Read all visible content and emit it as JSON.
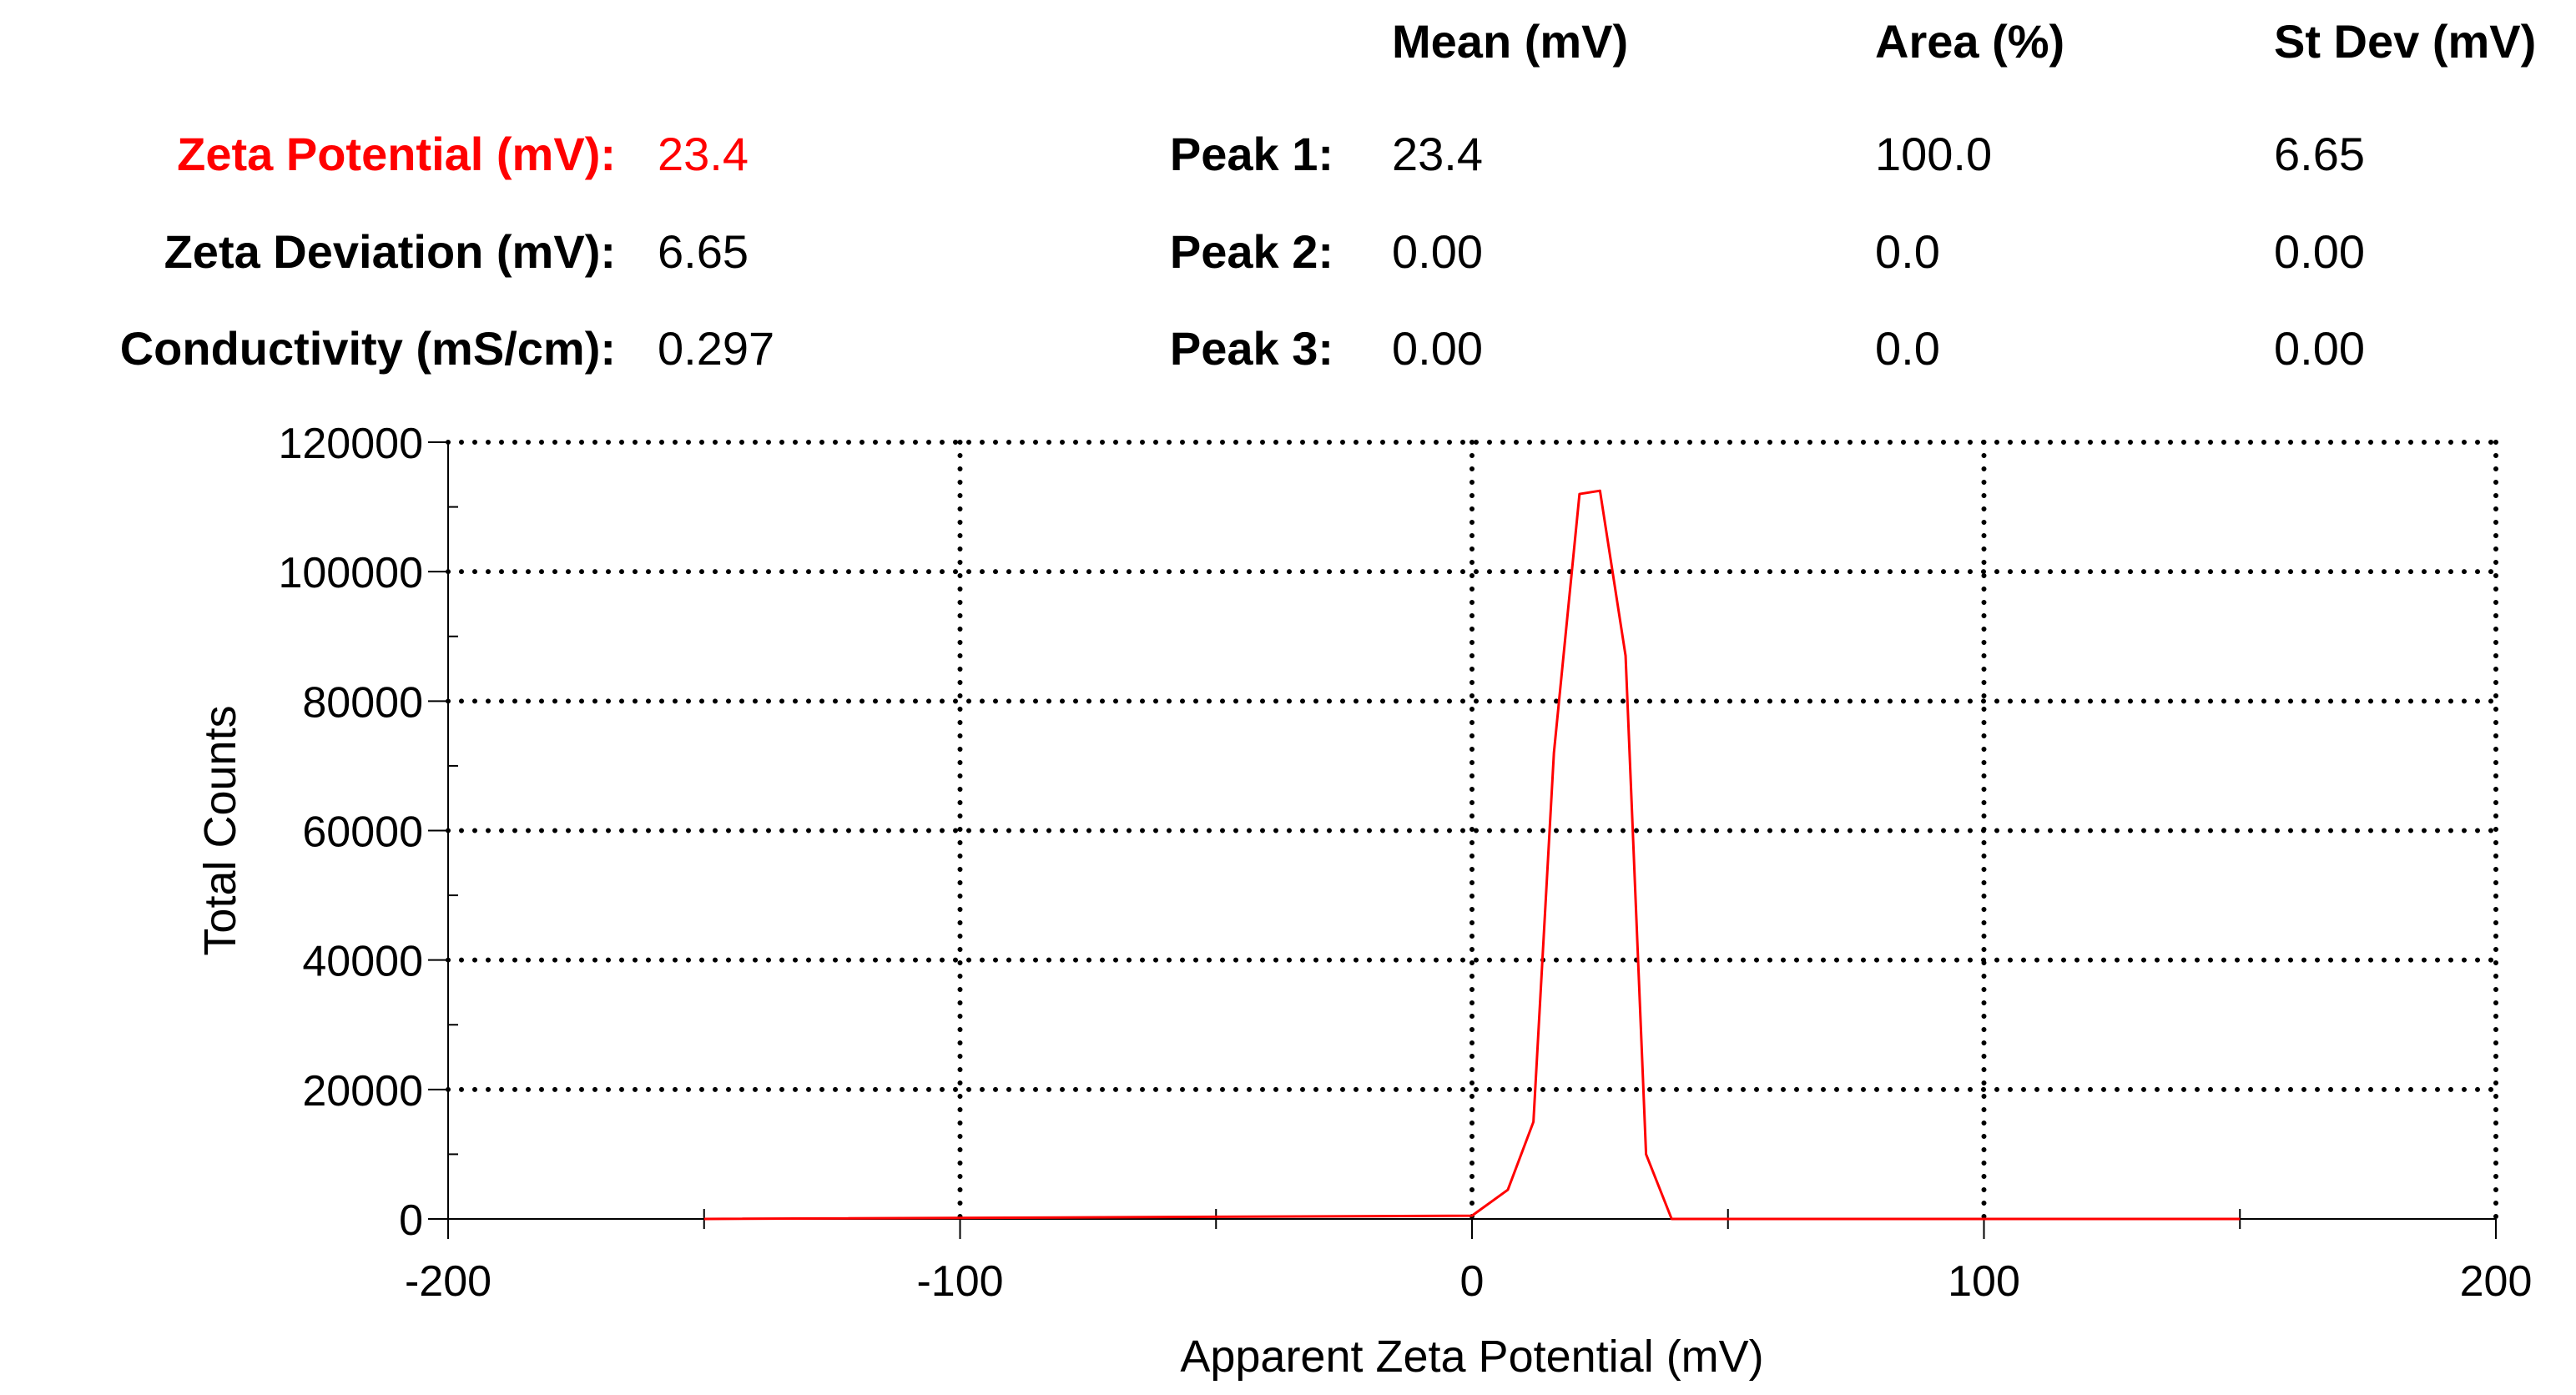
{
  "summary": {
    "zeta_potential_label": "Zeta Potential (mV):",
    "zeta_potential_value": "23.4",
    "zeta_deviation_label": "Zeta Deviation (mV):",
    "zeta_deviation_value": "6.65",
    "conductivity_label": "Conductivity (mS/cm):",
    "conductivity_value": "0.297"
  },
  "peaks_table": {
    "headers": [
      "Mean (mV)",
      "Area (%)",
      "St Dev (mV)"
    ],
    "rows": [
      {
        "label": "Peak 1:",
        "mean": "23.4",
        "area": "100.0",
        "stdev": "6.65"
      },
      {
        "label": "Peak 2:",
        "mean": "0.00",
        "area": "0.0",
        "stdev": "0.00"
      },
      {
        "label": "Peak 3:",
        "mean": "0.00",
        "area": "0.0",
        "stdev": "0.00"
      }
    ]
  },
  "colors": {
    "accent_red": "#ff0000",
    "axis": "#000000",
    "series": "#ff0000"
  },
  "chart_data": {
    "type": "line",
    "title": "",
    "xlabel": "Apparent Zeta Potential (mV)",
    "ylabel": "Total Counts",
    "xlim": [
      -200,
      200
    ],
    "ylim": [
      0,
      120000
    ],
    "xticks": [
      -200,
      -100,
      0,
      100,
      200
    ],
    "xticklabels": [
      "-200",
      "-100",
      "0",
      "100",
      "200"
    ],
    "yticks": [
      0,
      20000,
      40000,
      60000,
      80000,
      100000,
      120000
    ],
    "yticklabels": [
      "0",
      "20000",
      "40000",
      "60000",
      "80000",
      "100000",
      "120000"
    ],
    "grid": "dotted",
    "series": [
      {
        "name": "Total Counts",
        "x": [
          -150,
          0,
          7,
          12,
          16,
          21,
          25,
          30,
          34,
          39,
          50,
          150
        ],
        "y": [
          0,
          500,
          4500,
          15000,
          72000,
          112000,
          112500,
          87000,
          10000,
          0,
          0,
          0
        ]
      }
    ]
  }
}
